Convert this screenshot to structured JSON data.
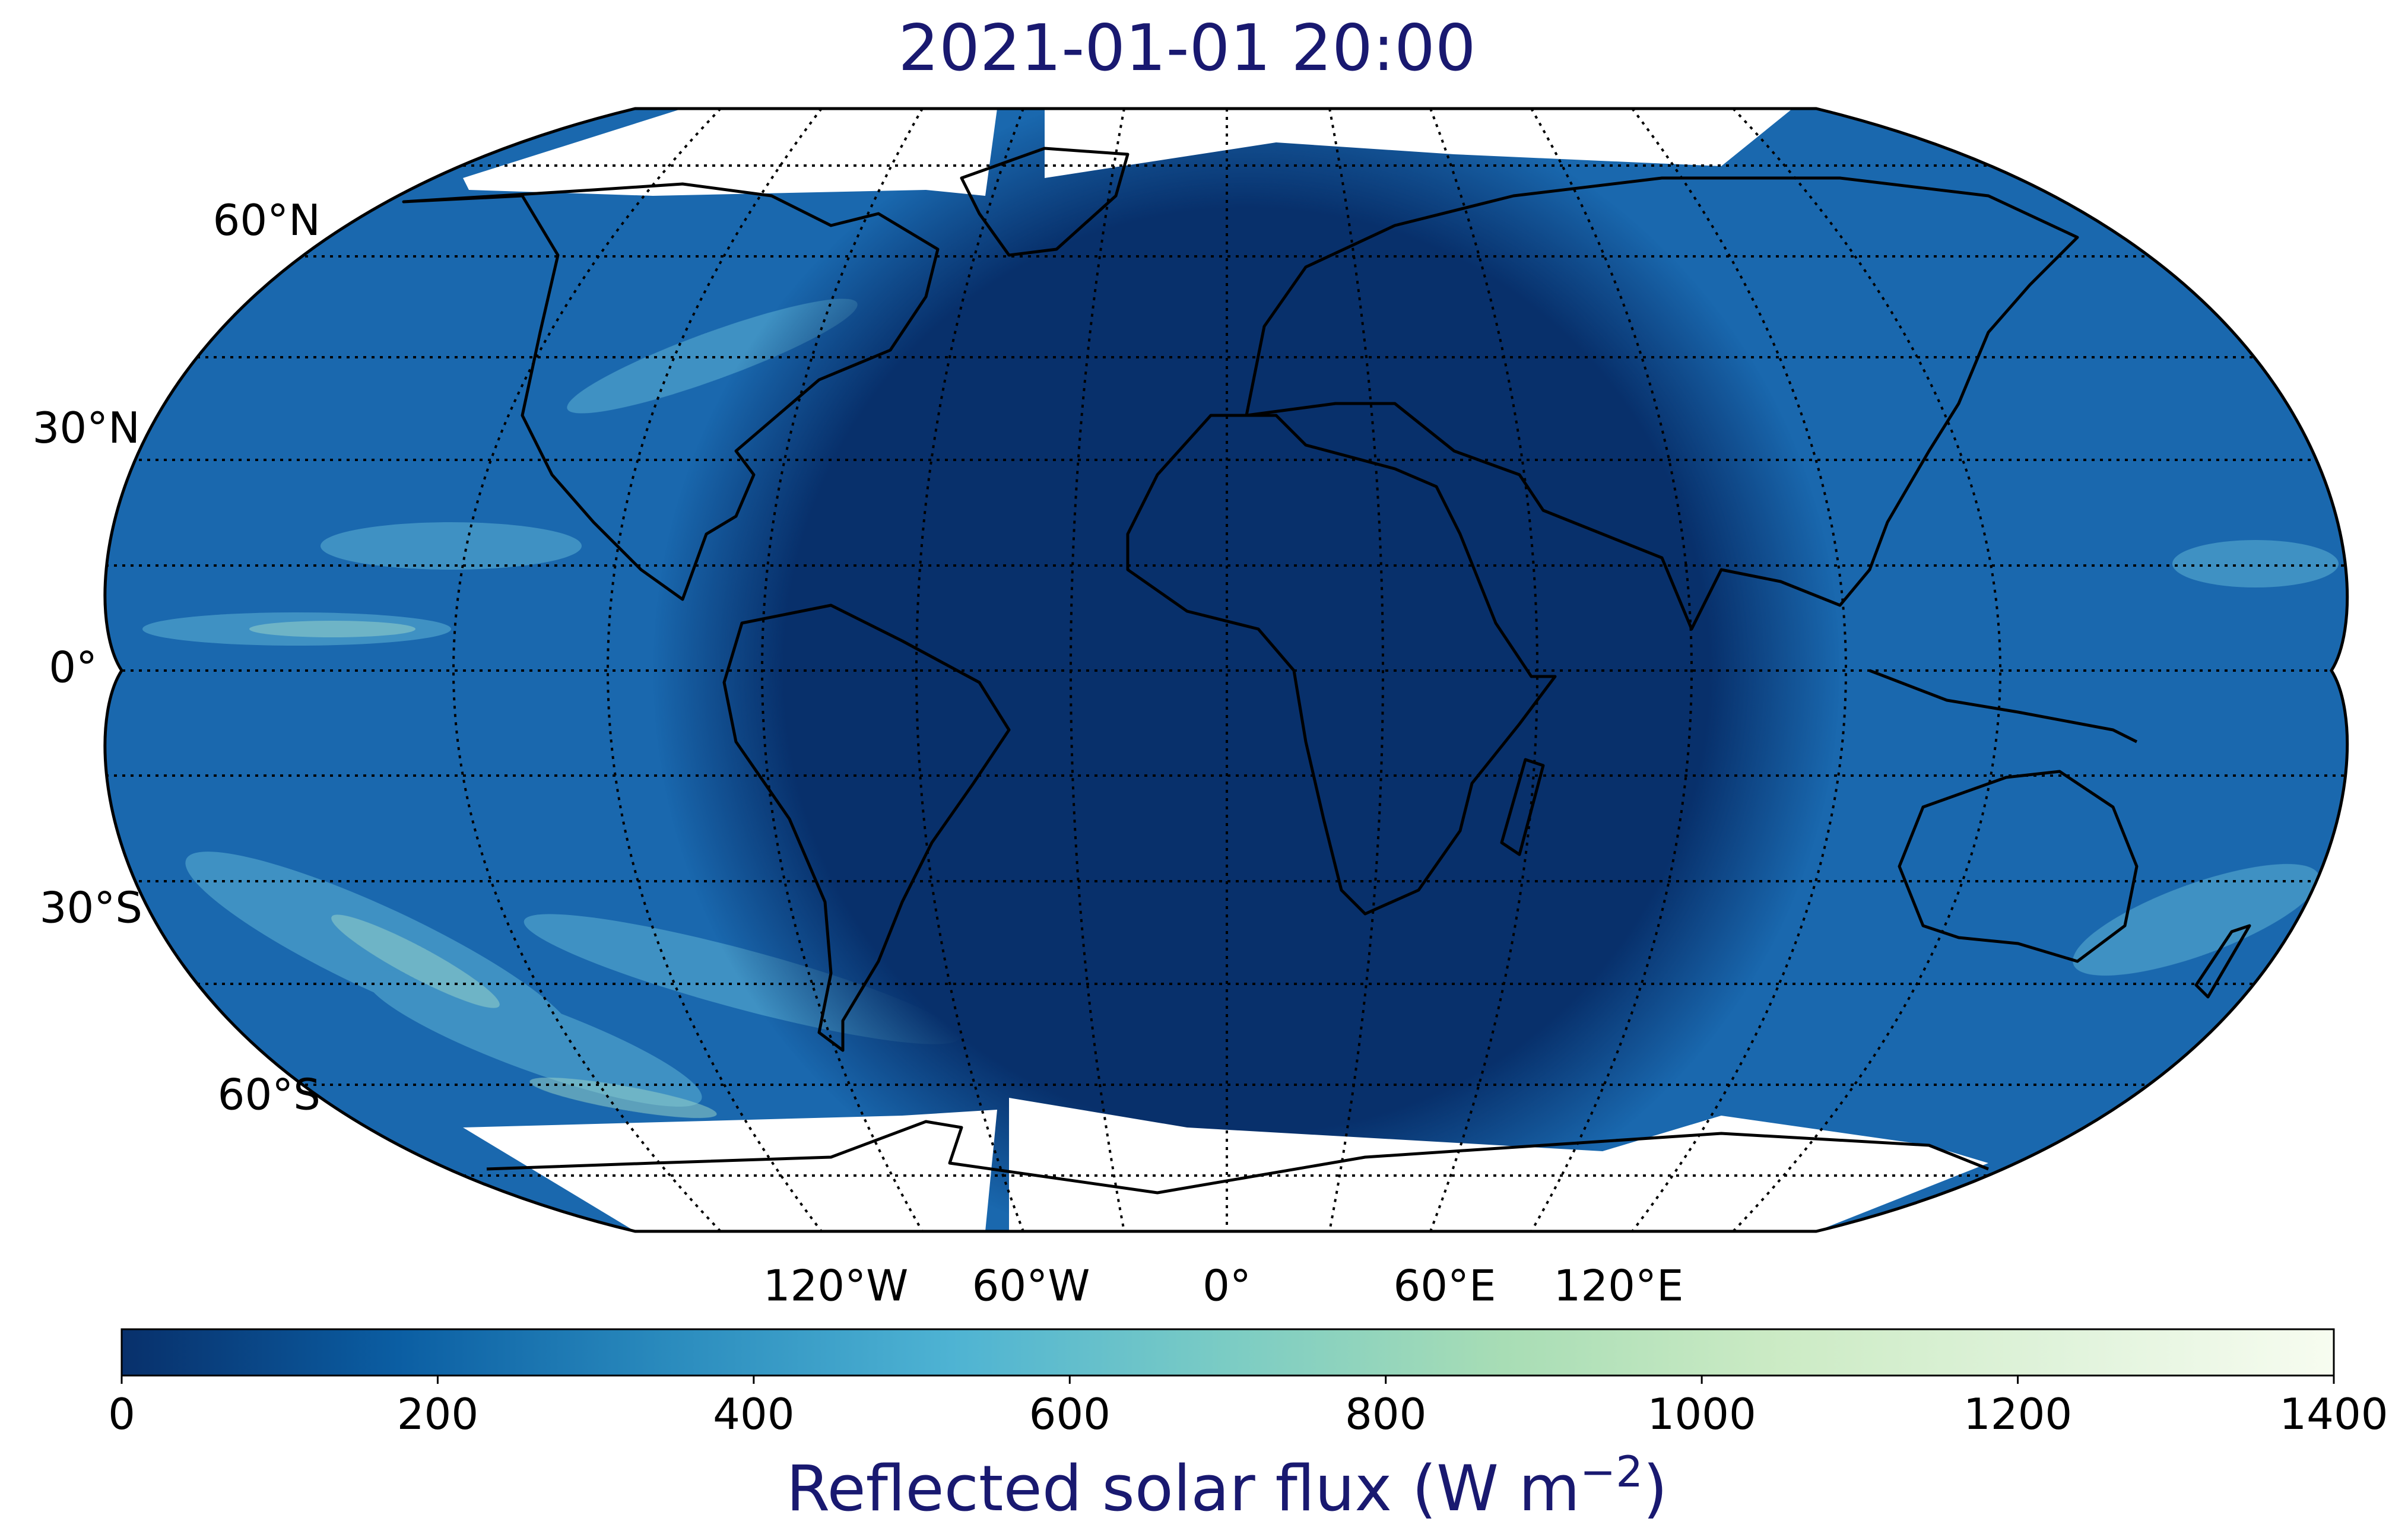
{
  "title": "2021-01-01 20:00",
  "lat_labels": [
    "60°N",
    "30°N",
    "0°",
    "30°S",
    "60°S"
  ],
  "lon_labels": [
    "120°W",
    "60°W",
    "0°",
    "60°E",
    "120°E"
  ],
  "colorbar": {
    "ticks": [
      "0",
      "200",
      "400",
      "600",
      "800",
      "1000",
      "1200",
      "1400"
    ],
    "label": "Reflected solar flux (W m",
    "label_sup": "−2",
    "label_close": ")",
    "min": 0,
    "max": 1400,
    "colors": [
      "#08306b",
      "#0b5ea3",
      "#2b8cbe",
      "#4eb3d3",
      "#7bccc4",
      "#a8ddb5",
      "#ccebc5",
      "#e0f3db",
      "#f7fcf0"
    ]
  },
  "map": {
    "projection": "Robinson",
    "night_color": "#08306b",
    "day_color": "#1a68ae",
    "ice_color": "#ffffff"
  }
}
